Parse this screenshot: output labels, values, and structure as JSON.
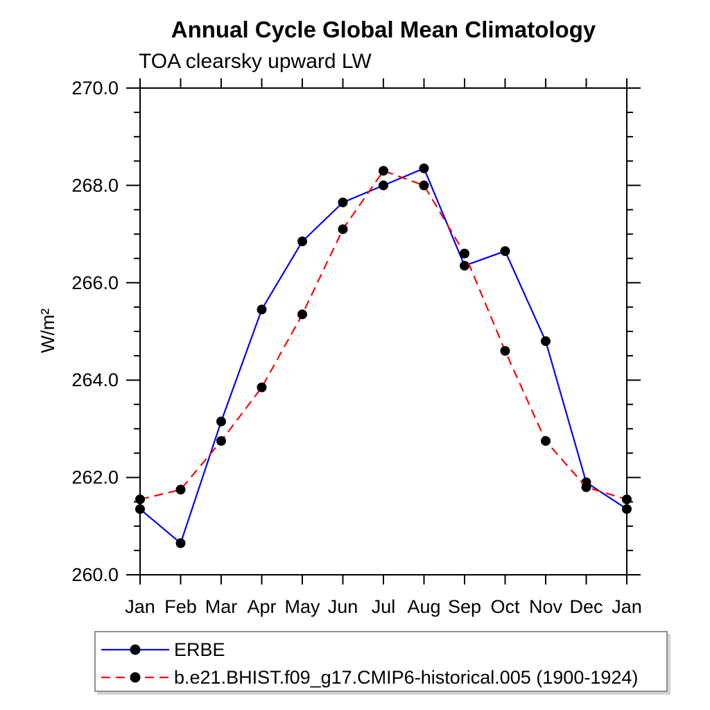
{
  "title": "Annual Cycle Global Mean Climatology",
  "subtitle": "TOA clearsky upward LW",
  "chart_data": {
    "type": "line",
    "x_categories": [
      "Jan",
      "Feb",
      "Mar",
      "Apr",
      "May",
      "Jun",
      "Jul",
      "Aug",
      "Sep",
      "Oct",
      "Nov",
      "Dec",
      "Jan"
    ],
    "xlabel": "",
    "ylabel": "W/m²",
    "ylim": [
      260.0,
      270.0
    ],
    "y_major_tick_labels": [
      "260.0",
      "262.0",
      "264.0",
      "266.0",
      "268.0",
      "270.0"
    ],
    "y_major_step": 2.0,
    "y_minor_step": 0.5,
    "grid": false,
    "legend_position": "bottom-left",
    "axis_color": "#000000",
    "series": [
      {
        "name": "ERBE",
        "color": "#0000ff",
        "line_style": "solid",
        "marker": "circle",
        "marker_color": "#000000",
        "values": [
          261.35,
          260.65,
          263.15,
          265.45,
          266.85,
          267.65,
          268.0,
          268.35,
          266.35,
          266.65,
          264.8,
          261.9,
          261.35
        ]
      },
      {
        "name": "b.e21.BHIST.f09_g17.CMIP6-historical.005 (1900-1924)",
        "color": "#ff0000",
        "line_style": "dashed",
        "marker": "circle",
        "marker_color": "#000000",
        "values": [
          261.55,
          261.75,
          262.75,
          263.85,
          265.35,
          267.1,
          268.3,
          268.0,
          266.6,
          264.6,
          262.75,
          261.8,
          261.55
        ]
      }
    ]
  }
}
